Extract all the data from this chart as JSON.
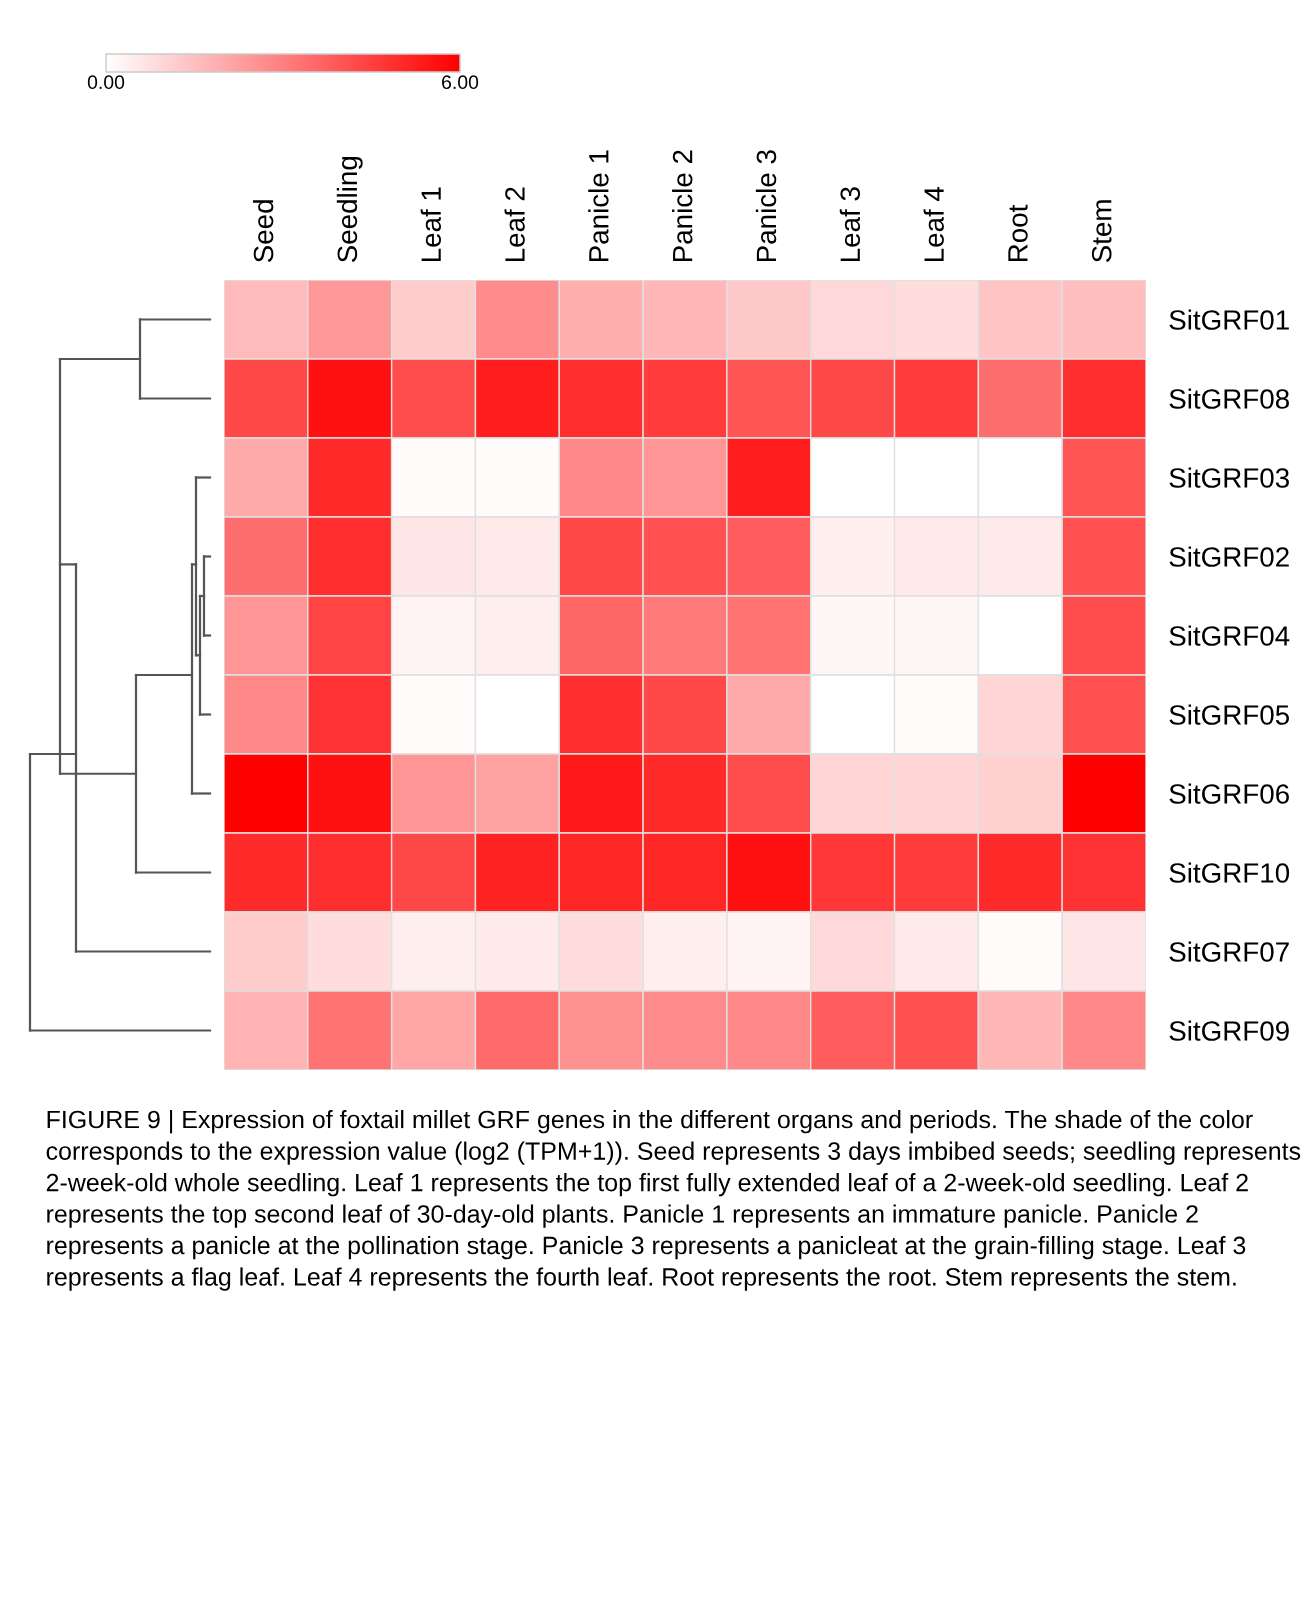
{
  "chart_data": {
    "type": "heatmap",
    "categories": [
      "Seed",
      "Seedling",
      "Leaf 1",
      "Leaf 2",
      "Panicle 1",
      "Panicle 2",
      "Panicle 3",
      "Leaf 3",
      "Leaf 4",
      "Root",
      "Stem"
    ],
    "y_categories": [
      "SitGRF01",
      "SitGRF08",
      "SitGRF03",
      "SitGRF02",
      "SitGRF04",
      "SitGRF05",
      "SitGRF06",
      "SitGRF10",
      "SitGRF07",
      "SitGRF09"
    ],
    "cells": [
      [
        1.6,
        2.4,
        1.2,
        2.7,
        1.9,
        1.7,
        1.3,
        0.9,
        0.8,
        1.4,
        1.5
      ],
      [
        4.3,
        5.6,
        4.2,
        5.3,
        4.9,
        4.6,
        4.0,
        4.3,
        4.6,
        3.4,
        4.9
      ],
      [
        2.0,
        5.0,
        0.1,
        0.1,
        2.8,
        2.5,
        5.3,
        0,
        0,
        0,
        4.0
      ],
      [
        3.4,
        4.9,
        0.6,
        0.5,
        4.3,
        4.1,
        3.8,
        0.4,
        0.5,
        0.5,
        4.1
      ],
      [
        2.5,
        4.4,
        0.3,
        0.4,
        3.6,
        3.1,
        3.3,
        0.2,
        0.2,
        0,
        4.2
      ],
      [
        2.8,
        4.8,
        0.1,
        0,
        4.9,
        4.3,
        2.0,
        0,
        0.1,
        1.0,
        4.1
      ],
      [
        6.0,
        5.6,
        2.5,
        2.2,
        5.4,
        5.0,
        4.2,
        1.0,
        1.0,
        1.1,
        6.0
      ],
      [
        5.0,
        4.9,
        4.3,
        5.2,
        5.1,
        5.1,
        5.6,
        4.7,
        4.6,
        5.0,
        4.8
      ],
      [
        1.2,
        0.8,
        0.4,
        0.5,
        0.8,
        0.4,
        0.3,
        0.9,
        0.5,
        0.1,
        0.6
      ],
      [
        1.8,
        3.3,
        2.1,
        3.5,
        2.6,
        2.7,
        2.8,
        3.8,
        4.1,
        1.7,
        2.8
      ]
    ],
    "clim": [
      0,
      6
    ],
    "cticks": [
      {
        "value": 0,
        "label": "0.00"
      },
      {
        "value": 6,
        "label": "6.00"
      }
    ],
    "annotations": [
      "FIGURE 9 | Expression of foxtail millet GRF genes in the different organs and periods. The shade of the color corresponds to the expression value (log2 (TPM+1)). Seed represents 3 days imbibed seeds; seedling represents 2-week-old whole seedling. Leaf 1 represents the top first fully extended leaf of a 2-week-old seedling. Leaf 2 represents the top second leaf of 30-day-old plants. Panicle 1 represents an immature panicle. Panicle 2 represents a panicle at the pollination stage. Panicle 3 represents a panicleat at the grain-filling stage. Leaf 3 represents a flag leaf. Leaf 4 represents the fourth leaf. Root represents the root. Stem represents the stem."
    ]
  }
}
